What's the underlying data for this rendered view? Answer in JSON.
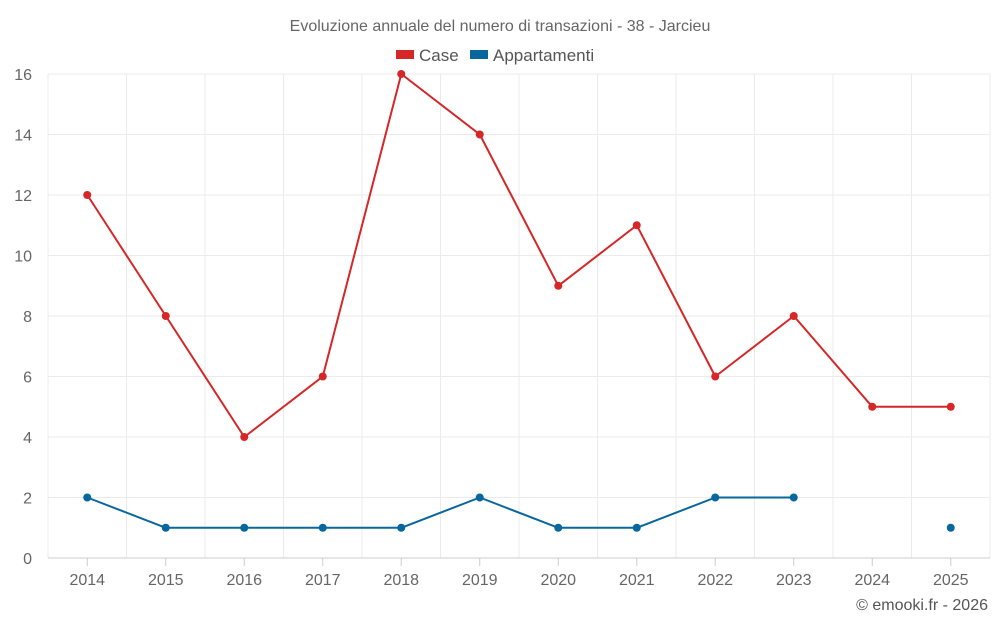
{
  "chart_data": {
    "type": "line",
    "title": "Evoluzione annuale del numero di transazioni - 38 - Jarcieu",
    "categories": [
      "2014",
      "2015",
      "2016",
      "2017",
      "2018",
      "2019",
      "2020",
      "2021",
      "2022",
      "2023",
      "2024",
      "2025"
    ],
    "series": [
      {
        "name": "Case",
        "color": "#d62728",
        "values": [
          12,
          8,
          4,
          6,
          16,
          14,
          9,
          11,
          6,
          8,
          5,
          5
        ]
      },
      {
        "name": "Appartamenti",
        "color": "#08679c",
        "values": [
          2,
          1,
          1,
          1,
          1,
          2,
          1,
          1,
          2,
          2,
          null,
          1
        ]
      }
    ],
    "ylim": [
      0,
      16
    ],
    "yticks": [
      0,
      2,
      4,
      6,
      8,
      10,
      12,
      14,
      16
    ],
    "xlabel": "",
    "ylabel": "",
    "grid": true,
    "legend": "top-center"
  },
  "credit": "© emooki.fr - 2026"
}
